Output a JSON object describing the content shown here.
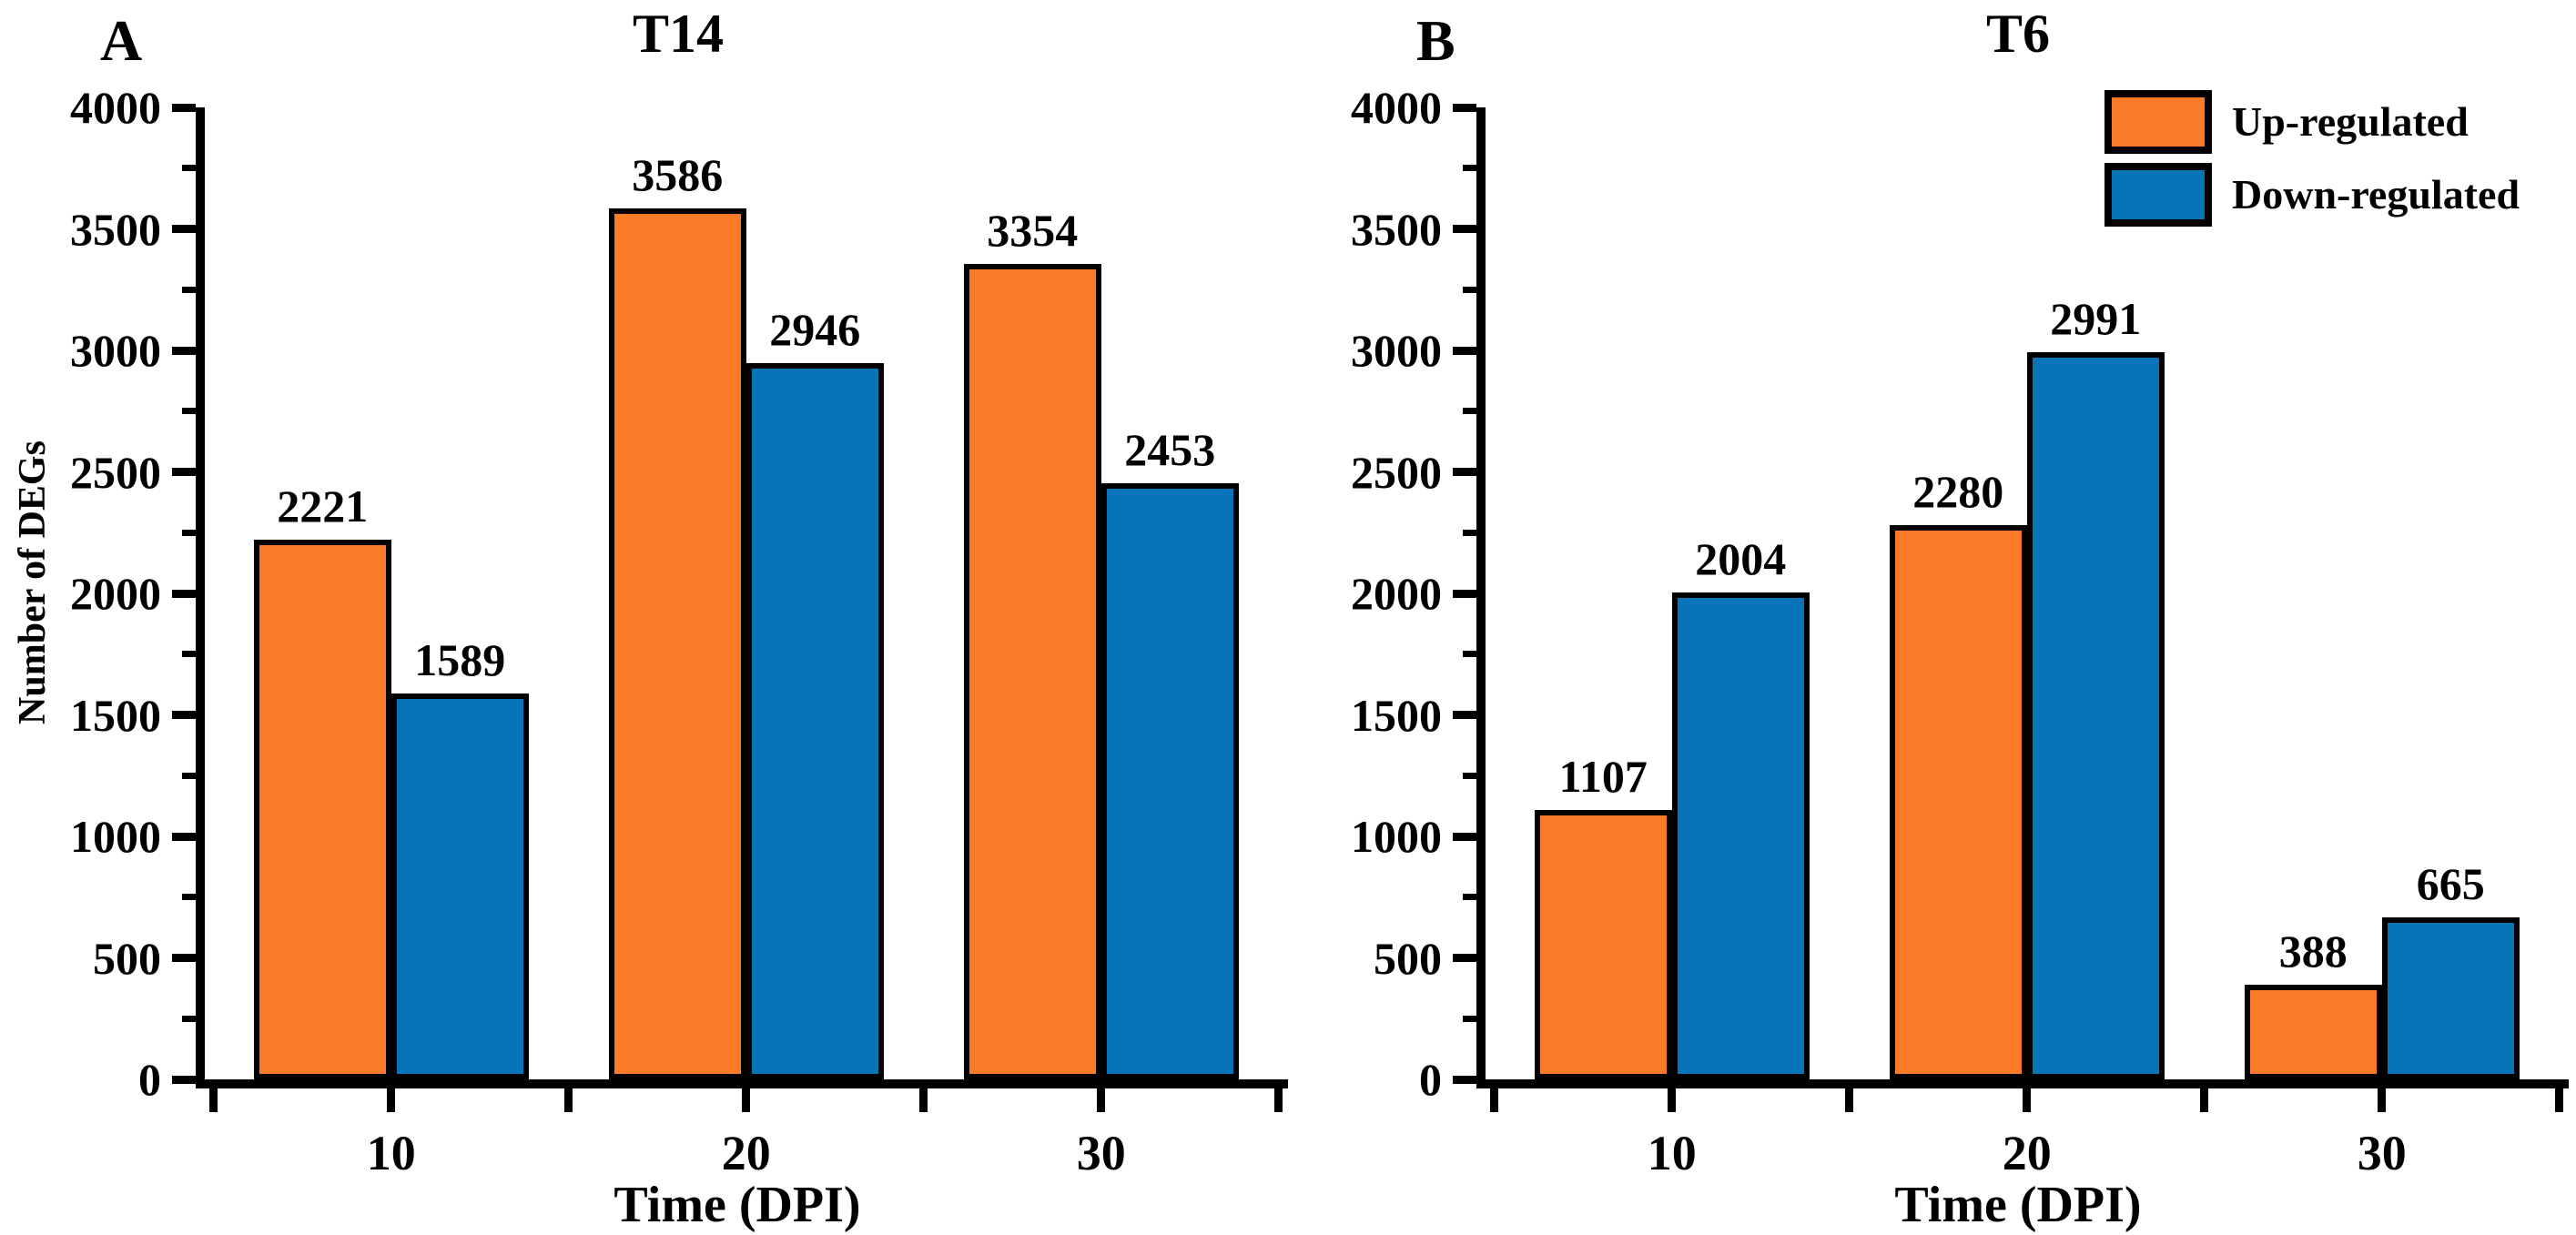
{
  "figure": {
    "background": "#FFFFFF",
    "axis_color": "#000000",
    "bar_border_color": "#000000",
    "legend": [
      {
        "label": "Up-regulated",
        "color": "#FA7A28",
        "swatch": "orange-rect"
      },
      {
        "label": "Down-regulated",
        "color": "#0773B9",
        "swatch": "blue-rect"
      }
    ]
  },
  "chart_data": [
    {
      "type": "bar",
      "panel": "A",
      "title": "T14",
      "xlabel": "Time (DPI)",
      "ylabel": "Number of DEGs",
      "categories": [
        "10",
        "20",
        "30"
      ],
      "series": [
        {
          "name": "Up-regulated",
          "color": "#FA7A28",
          "values": [
            2221,
            3586,
            3354
          ]
        },
        {
          "name": "Down-regulated",
          "color": "#0773B9",
          "values": [
            1589,
            2946,
            2453
          ]
        }
      ],
      "bar_value_labels": [
        [
          "2221",
          "1589"
        ],
        [
          "3586",
          "2946"
        ],
        [
          "3354",
          "2453"
        ]
      ],
      "ylim": [
        0,
        4000
      ],
      "yticks": [
        0,
        500,
        1000,
        1500,
        2000,
        2500,
        3000,
        3500,
        4000
      ],
      "ytick_labels": [
        "0",
        "500",
        "1000",
        "1500",
        "2000",
        "2500",
        "3000",
        "3500",
        "4000"
      ],
      "yminor_step": 250,
      "grid": false,
      "legend_position": "none"
    },
    {
      "type": "bar",
      "panel": "B",
      "title": "T6",
      "xlabel": "Time (DPI)",
      "ylabel": "",
      "categories": [
        "10",
        "20",
        "30"
      ],
      "series": [
        {
          "name": "Up-regulated",
          "color": "#FA7A28",
          "values": [
            1107,
            2280,
            388
          ]
        },
        {
          "name": "Down-regulated",
          "color": "#0773B9",
          "values": [
            2004,
            2991,
            665
          ]
        }
      ],
      "bar_value_labels": [
        [
          "1107",
          "2004"
        ],
        [
          "2280",
          "2991"
        ],
        [
          "388",
          "665"
        ]
      ],
      "ylim": [
        0,
        4000
      ],
      "yticks": [
        0,
        500,
        1000,
        1500,
        2000,
        2500,
        3000,
        3500,
        4000
      ],
      "ytick_labels": [
        "0",
        "500",
        "1000",
        "1500",
        "2000",
        "2500",
        "3000",
        "3500",
        "4000"
      ],
      "yminor_step": 250,
      "grid": false,
      "legend_position": "top-right"
    }
  ]
}
